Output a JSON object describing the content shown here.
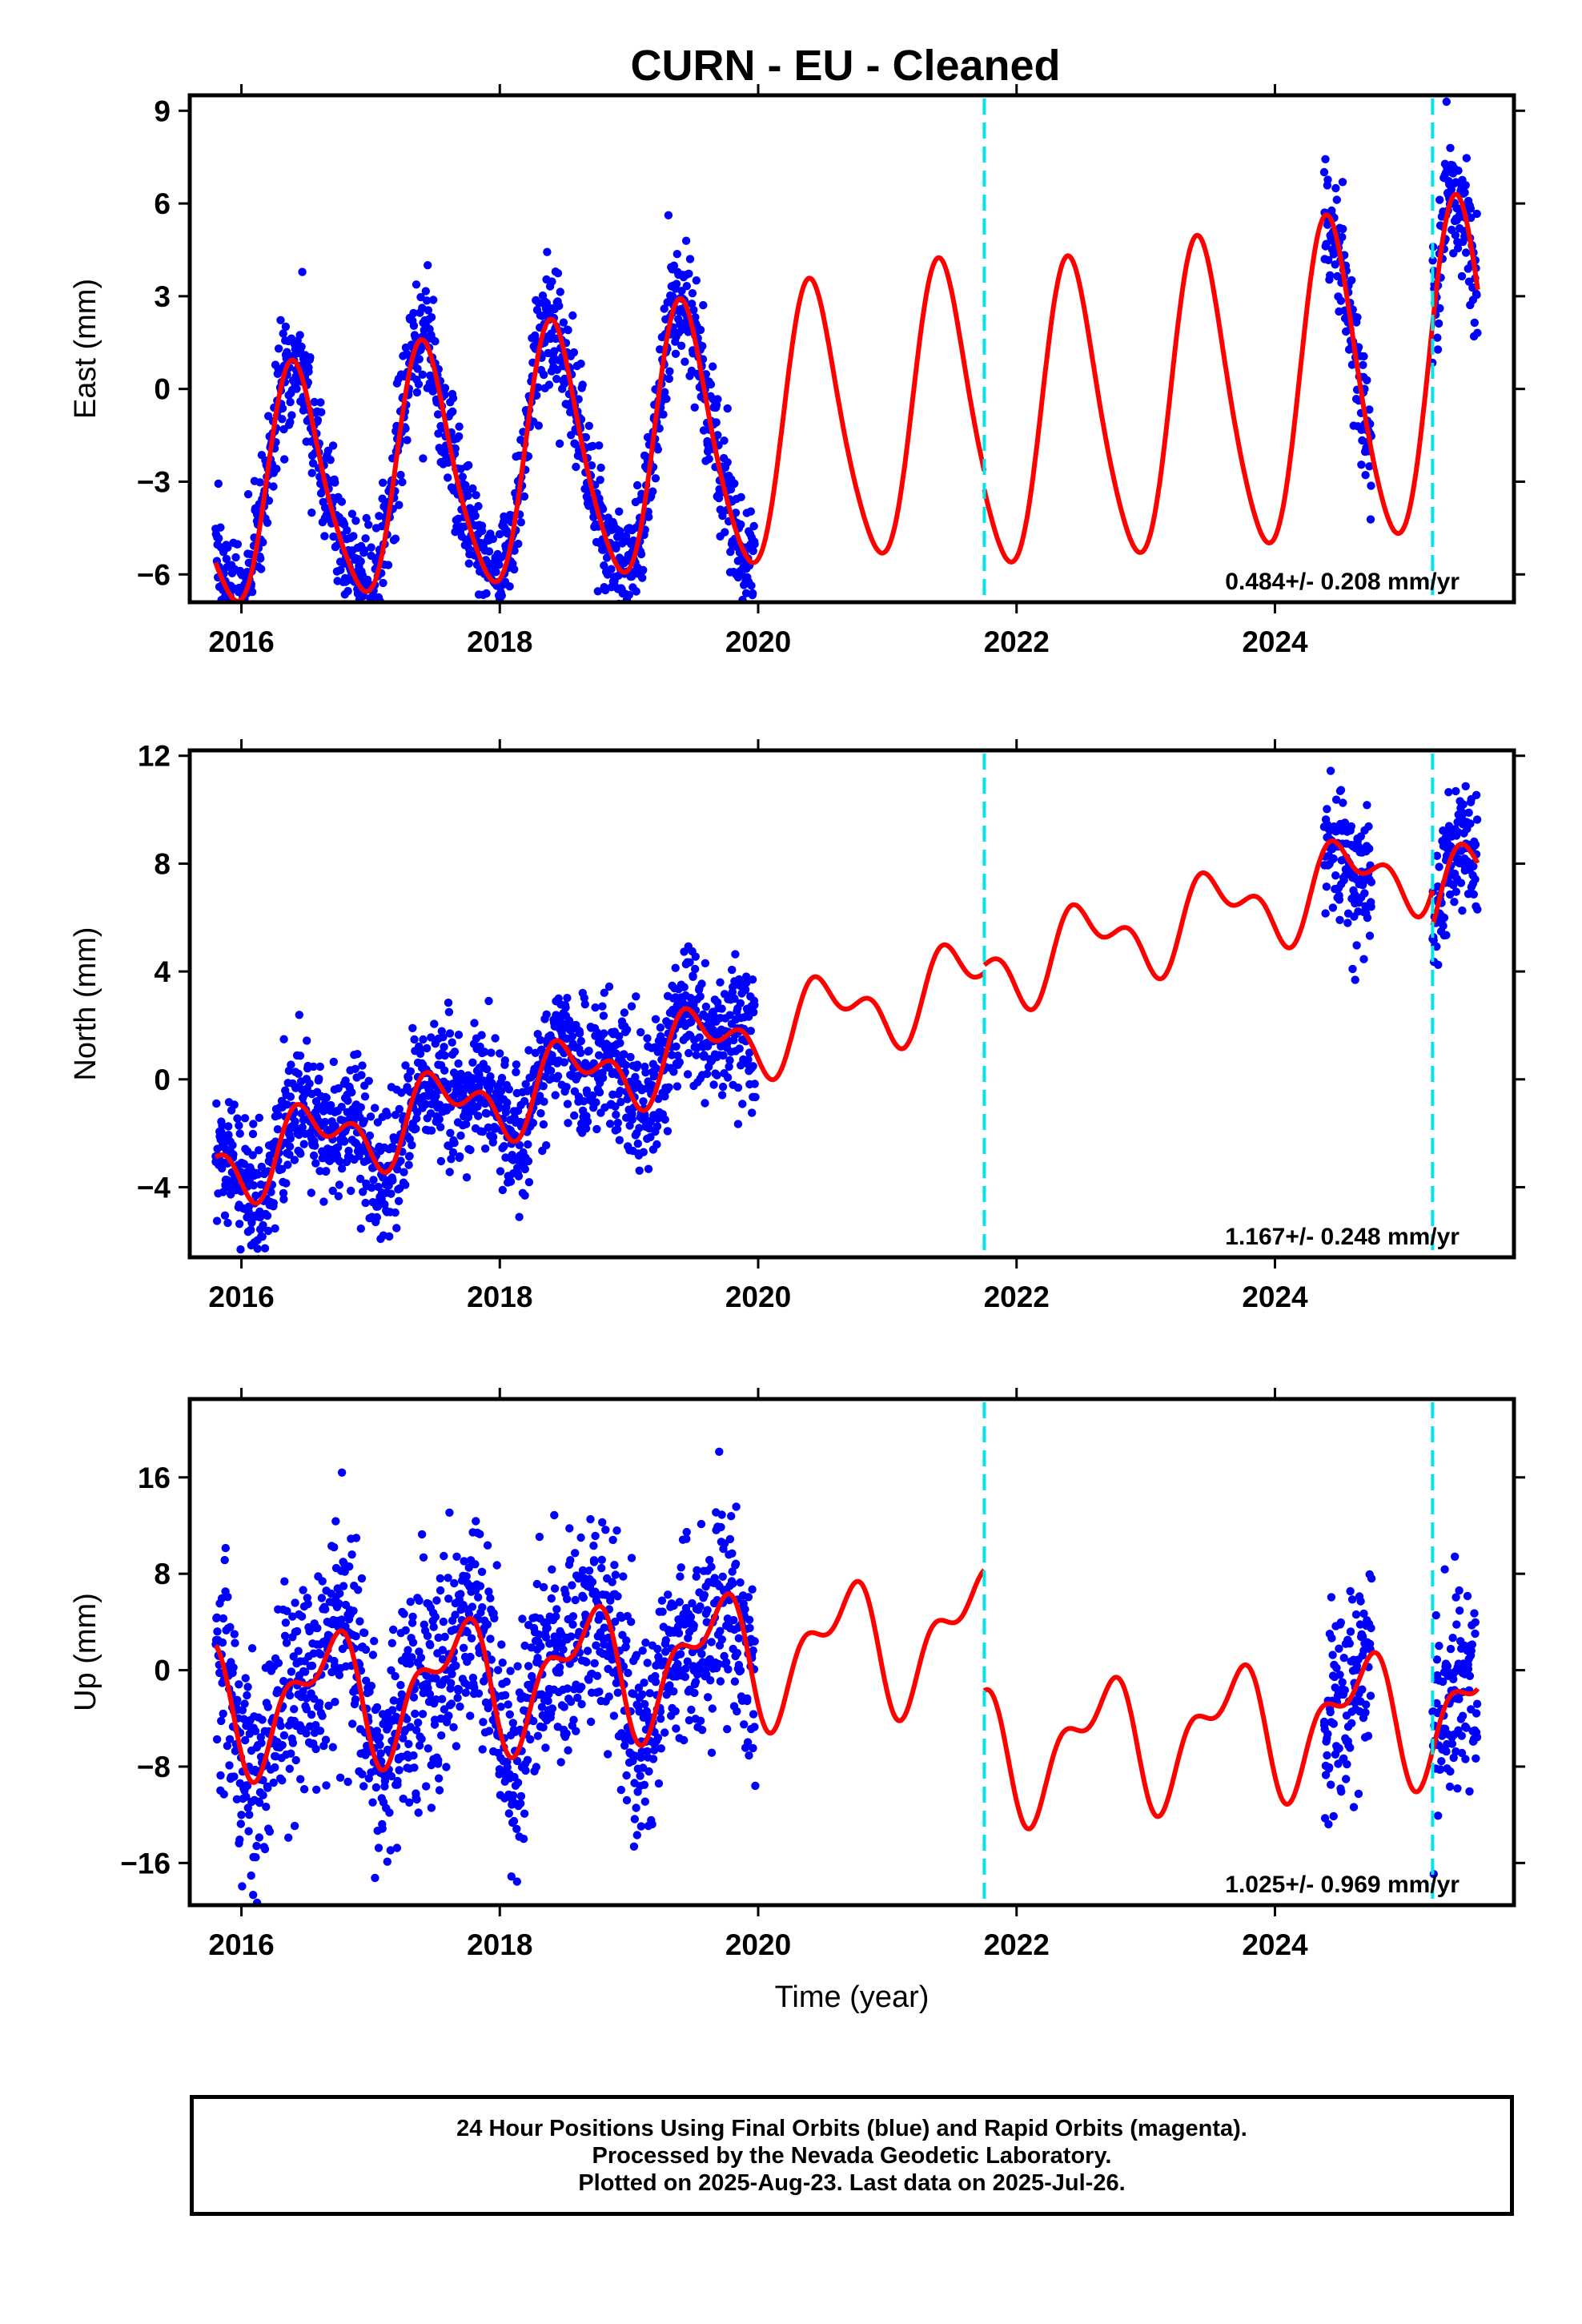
{
  "title": "CURN  - EU - Cleaned",
  "footer": {
    "line1": "24 Hour Positions Using Final Orbits (blue) and Rapid Orbits (magenta).",
    "line2": "Processed by the Nevada Geodetic Laboratory.",
    "line3": "Plotted on 2025-Aug-23. Last data on 2025-Jul-26."
  },
  "colors": {
    "points": "#0000ff",
    "model": "#ff0000",
    "offsets": "#00e5ee"
  },
  "chart_data": [
    {
      "type": "scatter",
      "component": "east",
      "ylabel": "East (mm)",
      "xlabel": "",
      "xlim": [
        2015.6,
        2025.85
      ],
      "ylim": [
        -6.9,
        9.5
      ],
      "xticks": [
        2016,
        2018,
        2020,
        2022,
        2024
      ],
      "yticks": [
        -6,
        -3,
        0,
        3,
        6,
        9
      ],
      "ytick_labels": [
        "−6",
        "−3",
        "0",
        "3",
        "6",
        "9"
      ],
      "rate_text": "0.484+/- 0.208 mm/yr",
      "offsets": [
        2021.75,
        2025.22
      ],
      "model": {
        "rate": 0.484,
        "t0": 2015.8,
        "b0": -3.5,
        "annual_amp": 3.6,
        "annual_peak": 2016.42,
        "semi_amp": 0.6,
        "semi_phase": 1.0,
        "amp_growth": 0.05,
        "jumps": [
          [
            2021.75,
            -0.6
          ],
          [
            2025.22,
            0.0
          ]
        ]
      },
      "data_windows": [
        [
          2015.8,
          2019.98
        ],
        [
          2024.38,
          2024.75
        ],
        [
          2025.22,
          2025.57
        ]
      ],
      "scatter_sigma": 1.0
    },
    {
      "type": "scatter",
      "component": "north",
      "ylabel": "North (mm)",
      "xlabel": "",
      "xlim": [
        2015.6,
        2025.85
      ],
      "ylim": [
        -6.6,
        12.2
      ],
      "xticks": [
        2016,
        2018,
        2020,
        2022,
        2024
      ],
      "yticks": [
        -4,
        0,
        4,
        8,
        12
      ],
      "ytick_labels": [
        "−4",
        "0",
        "4",
        "8",
        "12"
      ],
      "rate_text": "1.167+/- 0.248 mm/yr",
      "offsets": [
        2021.75,
        2025.22
      ],
      "model": {
        "rate": 1.167,
        "t0": 2015.8,
        "b0": -3.2,
        "annual_amp": 1.1,
        "annual_peak": 2016.55,
        "semi_amp": 0.8,
        "semi_phase": 0.4,
        "amp_growth": 0.02,
        "jumps": [
          [
            2021.75,
            0.3
          ],
          [
            2025.22,
            -1.3
          ]
        ]
      },
      "data_windows": [
        [
          2015.8,
          2019.98
        ],
        [
          2024.38,
          2024.75
        ],
        [
          2025.22,
          2025.57
        ]
      ],
      "scatter_sigma": 1.2
    },
    {
      "type": "scatter",
      "component": "up",
      "ylabel": "Up (mm)",
      "xlabel": "Time (year)",
      "xlim": [
        2015.6,
        2025.85
      ],
      "ylim": [
        -19.5,
        22.5
      ],
      "xticks": [
        2016,
        2018,
        2020,
        2022,
        2024
      ],
      "yticks": [
        -16,
        -8,
        0,
        8,
        16
      ],
      "ytick_labels": [
        "−16",
        "−8",
        "0",
        "8",
        "16"
      ],
      "rate_text": "1.025+/- 0.969 mm/yr",
      "offsets": [
        2021.75,
        2025.22
      ],
      "model": {
        "rate": 1.025,
        "t0": 2015.8,
        "b0": -3.0,
        "annual_amp": 4.5,
        "annual_peak": 2016.65,
        "semi_amp": 2.5,
        "semi_phase": 1.3,
        "amp_growth": 0.0,
        "jumps": [
          [
            2021.75,
            -10.0
          ],
          [
            2025.22,
            0.0
          ]
        ]
      },
      "data_windows": [
        [
          2015.8,
          2019.98
        ],
        [
          2024.38,
          2024.75
        ],
        [
          2025.22,
          2025.57
        ]
      ],
      "scatter_sigma": 4.5
    }
  ]
}
